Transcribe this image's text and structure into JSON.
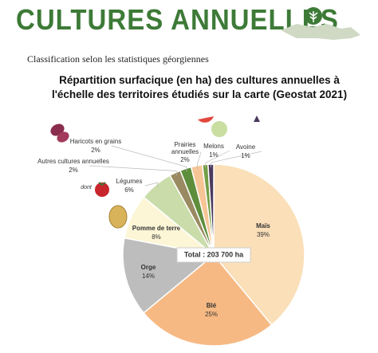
{
  "header": {
    "title": "CULTURES ANNUELLES",
    "subtitle": "Classification selon les statistiques géorgiennes"
  },
  "chart_data": {
    "type": "pie",
    "title": "Répartition surfacique (en ha) des cultures annuelles à l'échelle des territoires étudiés sur la carte (Geostat 2021)",
    "categories": [
      "Maïs",
      "Blé",
      "Orge",
      "Pomme de terre",
      "Légumes",
      "Autres cultures annuelles",
      "Haricots en grains",
      "Prairies annuelles",
      "Melons",
      "Avoine"
    ],
    "values": [
      39,
      25,
      14,
      8,
      6,
      2,
      2,
      2,
      1,
      1
    ],
    "value_labels": [
      "39%",
      "25%",
      "14%",
      "8%",
      "6%",
      "2%",
      "2%",
      "2%",
      "1%",
      "1%"
    ],
    "colors": [
      "#fadfb8",
      "#f7b983",
      "#bdbdbd",
      "#fcf6d6",
      "#c9dcaa",
      "#9a8a62",
      "#5e8e3c",
      "#f6c596",
      "#739e46",
      "#4a3a5c"
    ],
    "annotations": [
      "Total : 203 700 ha",
      "dont"
    ]
  }
}
